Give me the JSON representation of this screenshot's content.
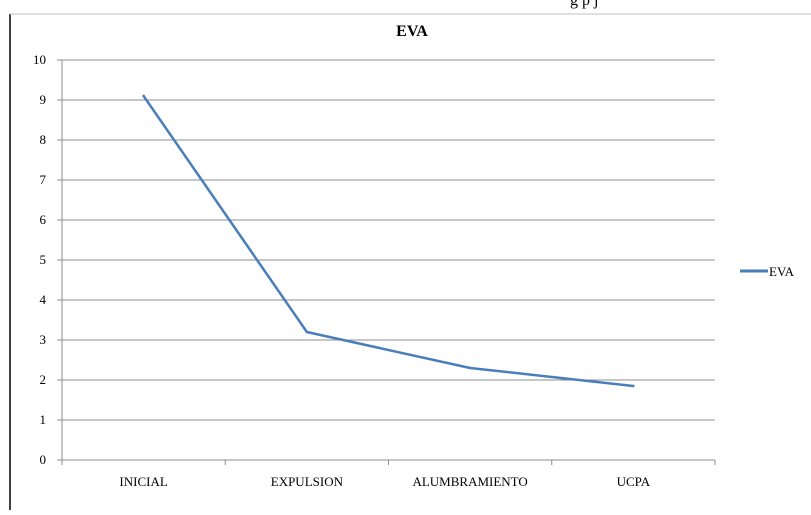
{
  "header_fragment": "g   p                                j",
  "chart_data": {
    "type": "line",
    "title": "EVA",
    "xlabel": "",
    "ylabel": "",
    "categories": [
      "INICIAL",
      "EXPULSION",
      "ALUMBRAMIENTO",
      "UCPA"
    ],
    "series": [
      {
        "name": "EVA",
        "color": "#4a7ebb",
        "points": [
          {
            "x": 0.0,
            "y": 9.1
          },
          {
            "x": 1.0,
            "y": 3.2
          },
          {
            "x": 2.0,
            "y": 2.3
          },
          {
            "x": 3.0,
            "y": 1.85
          }
        ]
      }
    ],
    "ylim": [
      0,
      10
    ],
    "yticks": [
      "0",
      "1",
      "2",
      "3",
      "4",
      "5",
      "6",
      "7",
      "8",
      "9",
      "10"
    ],
    "grid": true,
    "legend": "right"
  }
}
